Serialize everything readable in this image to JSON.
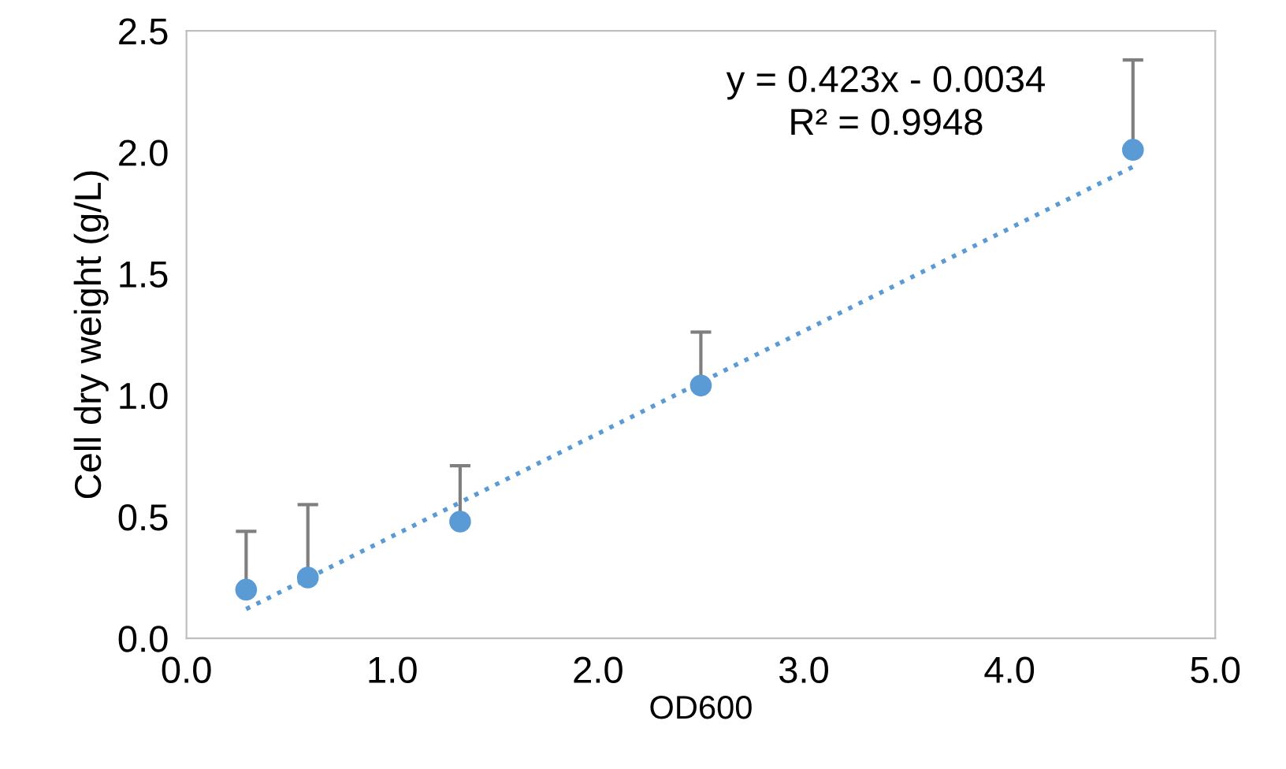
{
  "chart_data": {
    "type": "scatter",
    "xlabel": "OD600",
    "ylabel": "Cell dry weight (g/L)",
    "xlim": [
      0,
      5
    ],
    "xticks": [
      {
        "value": 0,
        "label": "0.0"
      },
      {
        "value": 1,
        "label": "1.0"
      },
      {
        "value": 2,
        "label": "2.0"
      },
      {
        "value": 3,
        "label": "3.0"
      },
      {
        "value": 4,
        "label": "4.0"
      },
      {
        "value": 5,
        "label": "5.0"
      }
    ],
    "ylim": [
      0,
      2.5
    ],
    "yticks": [
      {
        "value": 0,
        "label": "0.0"
      },
      {
        "value": 0.5,
        "label": "0.5"
      },
      {
        "value": 1,
        "label": "1.0"
      },
      {
        "value": 1.5,
        "label": "1.5"
      },
      {
        "value": 2,
        "label": "2.0"
      },
      {
        "value": 2.5,
        "label": "2.5"
      }
    ],
    "grid": false,
    "legend": false,
    "series": [
      {
        "marker": "circle",
        "color": "#5b9bd5",
        "x": [
          0.29,
          0.59,
          1.33,
          2.5,
          4.6
        ],
        "values": [
          0.2,
          0.25,
          0.48,
          1.04,
          2.01
        ],
        "errors": [
          [
            0.2,
            0.44
          ],
          [
            0.25,
            0.55
          ],
          [
            0.48,
            0.71
          ],
          [
            1.04,
            1.26
          ],
          [
            2.01,
            2.38
          ]
        ]
      },
      {
        "type": "line",
        "color": "#5b9bd5",
        "line_style": "dotted",
        "x": [
          0.29,
          4.6
        ],
        "values": [
          0.12,
          1.94
        ]
      }
    ],
    "annotations": [
      "y = 0.423x - 0.0034\nR² = 0.9948"
    ]
  }
}
